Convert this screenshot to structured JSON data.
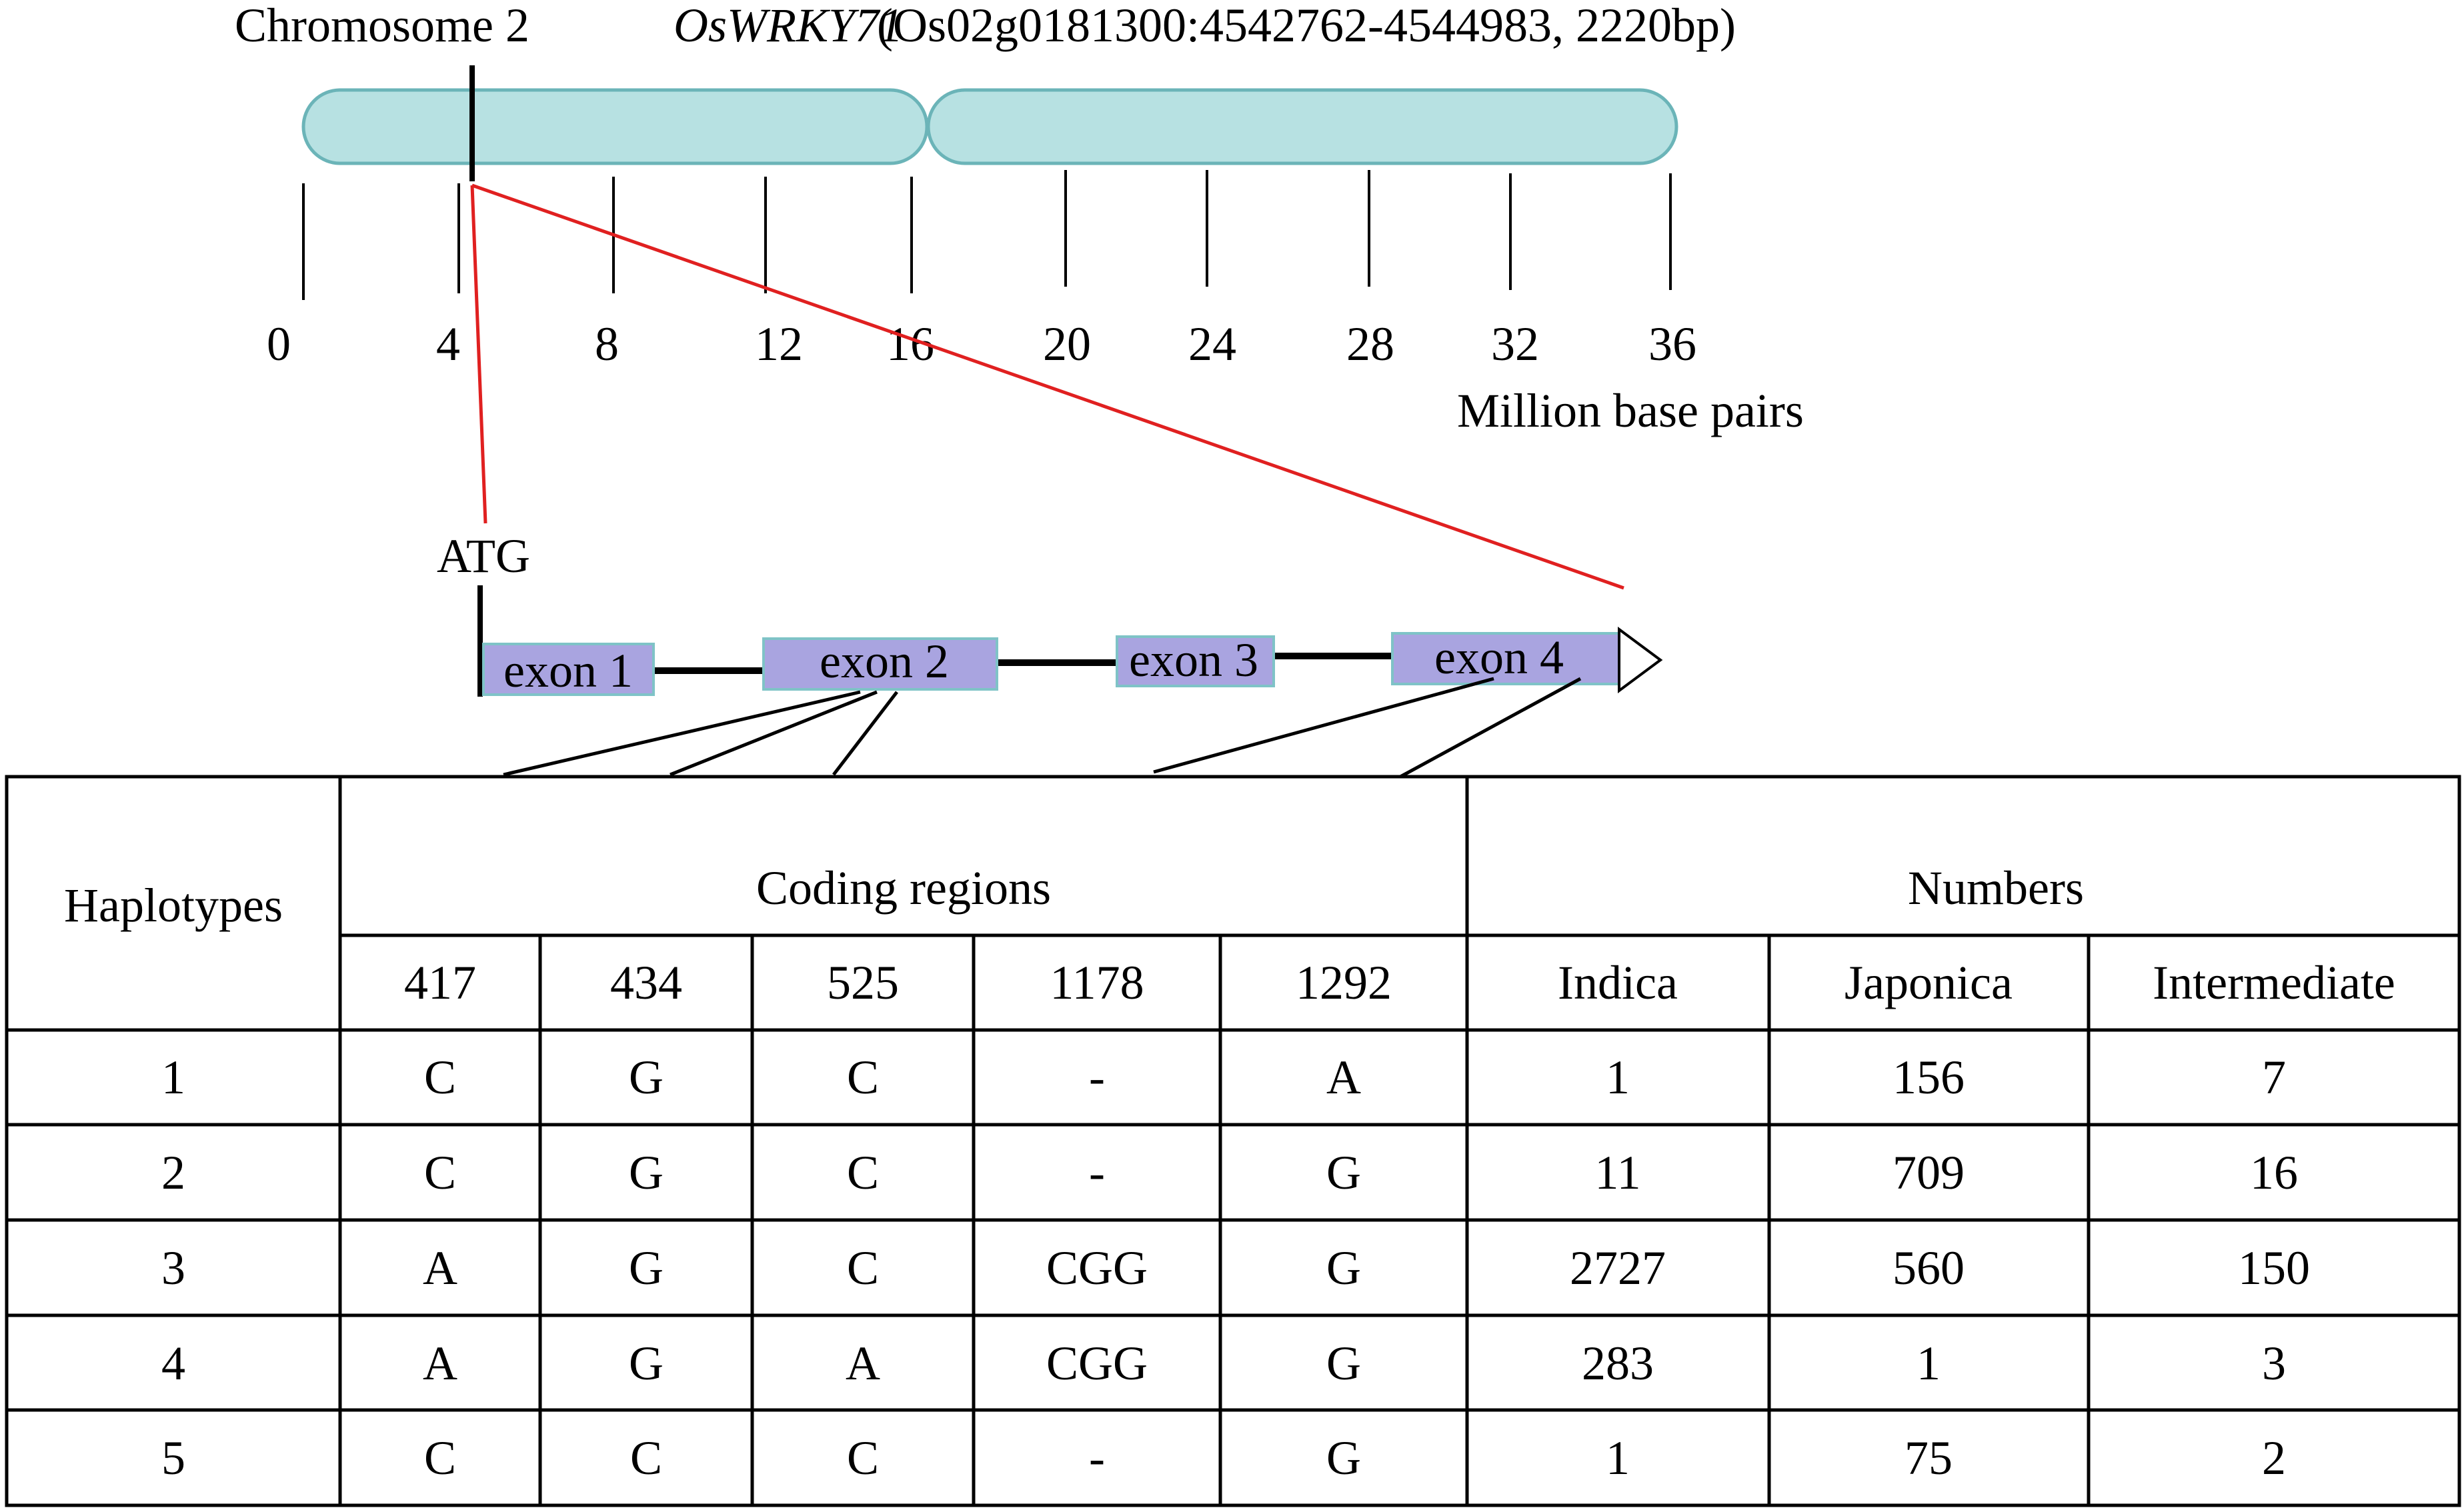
{
  "header": {
    "chromosome": "Chromosome 2",
    "gene": "OsWRKY71",
    "locus": "(Os02g0181300:4542762-4544983, 2220bp)"
  },
  "colors": {
    "chromosome_fill": "#b7e1e2",
    "chromosome_stroke": "#6bb4b8",
    "exon_fill": "#a9a4e0",
    "exon_stroke": "#7fc3c7",
    "zoom_line": "#e02020"
  },
  "axis": {
    "ticks": [
      "0",
      "4",
      "8",
      "12",
      "16",
      "20",
      "24",
      "28",
      "32",
      "36"
    ],
    "unit": "Million base pairs"
  },
  "gene_model": {
    "start_codon": "ATG",
    "exons": [
      "exon 1",
      "exon 2",
      "exon 3",
      "exon 4"
    ]
  },
  "table": {
    "haplotypes_header": "Haplotypes",
    "coding_header": "Coding regions",
    "numbers_header": "Numbers",
    "positions": [
      "417",
      "434",
      "525",
      "1178",
      "1292"
    ],
    "groups": [
      "Indica",
      "Japonica",
      "Intermediate"
    ],
    "rows": [
      {
        "id": "1",
        "alleles": [
          "C",
          "G",
          "C",
          "-",
          "A"
        ],
        "counts": [
          "1",
          "156",
          "7"
        ]
      },
      {
        "id": "2",
        "alleles": [
          "C",
          "G",
          "C",
          "-",
          "G"
        ],
        "counts": [
          "11",
          "709",
          "16"
        ]
      },
      {
        "id": "3",
        "alleles": [
          "A",
          "G",
          "C",
          "CGG",
          "G"
        ],
        "counts": [
          "2727",
          "560",
          "150"
        ]
      },
      {
        "id": "4",
        "alleles": [
          "A",
          "G",
          "A",
          "CGG",
          "G"
        ],
        "counts": [
          "283",
          "1",
          "3"
        ]
      },
      {
        "id": "5",
        "alleles": [
          "C",
          "C",
          "C",
          "-",
          "G"
        ],
        "counts": [
          "1",
          "75",
          "2"
        ]
      }
    ]
  }
}
